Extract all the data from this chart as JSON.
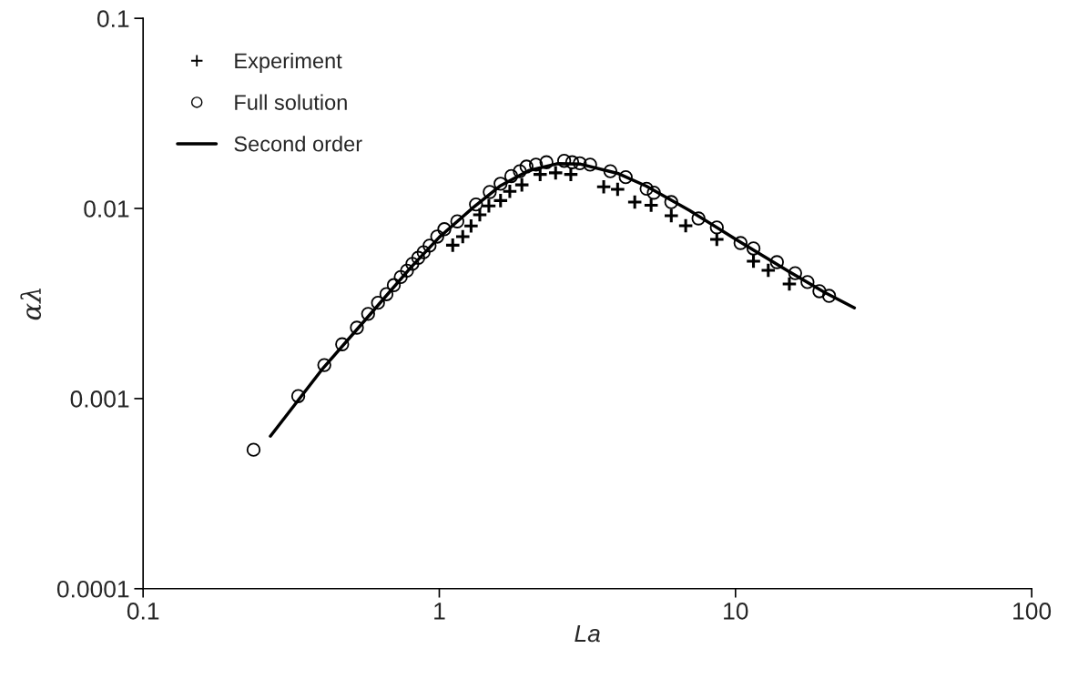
{
  "chart_data": {
    "type": "scatter",
    "xlabel": "La",
    "ylabel": "αλ",
    "log": "xy",
    "xlim": [
      0.1,
      100
    ],
    "ylim": [
      0.0001,
      0.1
    ],
    "xticks": [
      0.1,
      1,
      10,
      100
    ],
    "yticks": [
      0.0001,
      0.001,
      0.01,
      0.1
    ],
    "grid": false,
    "legend": "top left",
    "series": [
      {
        "name": "Experiment",
        "marker": "cross",
        "color": "#000000",
        "x": [
          1.11,
          1.2,
          1.28,
          1.37,
          1.47,
          1.61,
          1.73,
          1.9,
          2.19,
          2.47,
          2.78,
          3.59,
          4.0,
          4.57,
          5.19,
          6.07,
          6.79,
          8.65,
          11.5,
          12.9,
          15.2
        ],
        "values": [
          0.00641,
          0.00711,
          0.00809,
          0.00926,
          0.0103,
          0.011,
          0.0123,
          0.0133,
          0.0151,
          0.0154,
          0.0151,
          0.013,
          0.0126,
          0.0108,
          0.0104,
          0.00916,
          0.00811,
          0.00688,
          0.00528,
          0.00473,
          0.00401
        ]
      },
      {
        "name": "Full solution",
        "marker": "circle",
        "color": "#000000",
        "x": [
          0.236,
          0.334,
          0.409,
          0.47,
          0.527,
          0.575,
          0.621,
          0.663,
          0.702,
          0.741,
          0.778,
          0.811,
          0.849,
          0.885,
          0.927,
          0.984,
          1.04,
          1.15,
          1.33,
          1.48,
          1.61,
          1.75,
          1.87,
          1.97,
          2.12,
          2.3,
          2.64,
          2.81,
          2.98,
          3.23,
          3.78,
          4.26,
          5.01,
          5.3,
          6.07,
          7.5,
          8.65,
          10.4,
          11.5,
          13.8,
          15.9,
          17.5,
          19.2,
          20.7
        ],
        "values": [
          0.000538,
          0.00103,
          0.0015,
          0.00193,
          0.00236,
          0.00279,
          0.00319,
          0.00354,
          0.00395,
          0.00436,
          0.00471,
          0.00511,
          0.0055,
          0.00588,
          0.00637,
          0.00711,
          0.00778,
          0.00855,
          0.0105,
          0.0122,
          0.0135,
          0.0148,
          0.0157,
          0.0166,
          0.017,
          0.0175,
          0.0178,
          0.0175,
          0.0173,
          0.017,
          0.0157,
          0.0146,
          0.0127,
          0.0121,
          0.0108,
          0.00886,
          0.00794,
          0.00658,
          0.00616,
          0.00522,
          0.00457,
          0.0041,
          0.00367,
          0.00347
        ]
      },
      {
        "name": "Second order",
        "type": "line",
        "marker": "none",
        "line_style": "solid",
        "color": "#000000",
        "x": [
          0.269,
          0.4,
          0.6,
          0.8,
          1.0,
          1.3,
          1.6,
          2.0,
          2.5,
          3.0,
          4.0,
          5.0,
          7.0,
          10.0,
          15.0,
          20.0,
          25.2
        ],
        "values": [
          0.000634,
          0.00141,
          0.00291,
          0.00488,
          0.00706,
          0.0101,
          0.0131,
          0.0158,
          0.0172,
          0.0171,
          0.0153,
          0.0131,
          0.00975,
          0.0069,
          0.0047,
          0.00362,
          0.003
        ]
      }
    ]
  }
}
